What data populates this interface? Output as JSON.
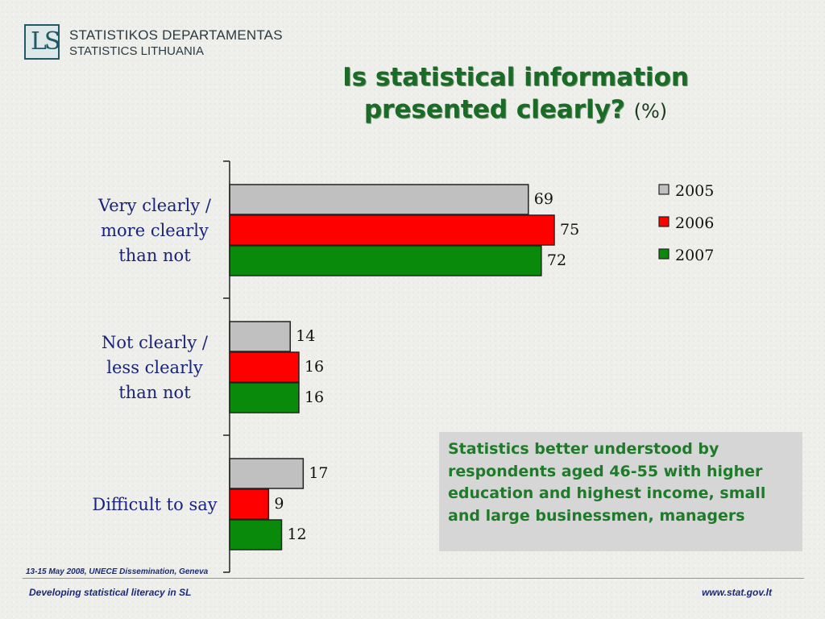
{
  "logo": {
    "mark": "LS",
    "line1": "STATISTIKOS DEPARTAMENTAS",
    "line2": "STATISTICS LITHUANIA"
  },
  "title": {
    "line1": "Is statistical information",
    "line2": "presented clearly?",
    "unit": "(%)"
  },
  "note": "Statistics better understood by respondents aged 46-55 with higher education and highest income, small and large businessmen, managers",
  "footer": {
    "event": "13-15 May 2008, UNECE Dissemination, Geneva",
    "left": "Developing statistical literacy in SL",
    "right": "www.stat.gov.lt"
  },
  "chart_data": {
    "type": "bar",
    "orientation": "horizontal",
    "categories": [
      "Very clearly / more clearly than not",
      "Not clearly / less clearly than not",
      "Difficult to say"
    ],
    "category_lines": [
      [
        "Very clearly /",
        "more clearly",
        "than not"
      ],
      [
        "Not clearly /",
        "less clearly",
        "than not"
      ],
      [
        "Difficult to say"
      ]
    ],
    "series": [
      {
        "name": "2005",
        "values": [
          69,
          14,
          17
        ],
        "color": "#c0c0c0"
      },
      {
        "name": "2006",
        "values": [
          75,
          16,
          9
        ],
        "color": "#ff0000"
      },
      {
        "name": "2007",
        "values": [
          72,
          16,
          12
        ],
        "color": "#0a8a0a"
      }
    ],
    "xlim": [
      0,
      100
    ],
    "data_labels": true,
    "legend": "top-right",
    "grid": false
  }
}
